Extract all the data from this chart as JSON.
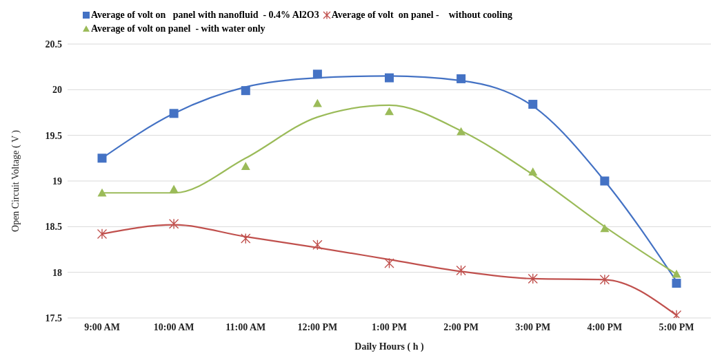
{
  "chart_data": {
    "type": "scatter",
    "xlabel": "Daily Hours ( h )",
    "ylabel": "Open Circuit Voltage ( V )",
    "categories": [
      "9:00 AM",
      "10:00 AM",
      "11:00 AM",
      "12:00 PM",
      "1:00 PM",
      "2:00 PM",
      "3:00 PM",
      "4:00 PM",
      "5:00 PM"
    ],
    "ylim": [
      17.5,
      20.5
    ],
    "yticks": [
      17.5,
      18,
      18.5,
      19,
      19.5,
      20,
      20.5
    ],
    "grid": "y",
    "legend": "top",
    "series": [
      {
        "name": "Average of volt on   panel with nanofluid  - 0.4% Al2O3",
        "color": "#4472c4",
        "marker": "square",
        "values": [
          19.25,
          19.74,
          19.99,
          20.17,
          20.13,
          20.12,
          19.84,
          19.0,
          17.88
        ]
      },
      {
        "name": "Average of volt  on panel -    without cooling",
        "color": "#c0504d",
        "marker": "cross",
        "values": [
          18.42,
          18.53,
          18.37,
          18.3,
          18.1,
          18.02,
          17.93,
          17.92,
          17.53
        ]
      },
      {
        "name": "Average of volt on panel  - with water only",
        "color": "#9bbb59",
        "marker": "triangle",
        "values": [
          18.87,
          18.91,
          19.16,
          19.85,
          19.76,
          19.54,
          19.1,
          18.48,
          17.98
        ]
      },
      {
        "color": "#4472c4",
        "type": "line",
        "values": [
          19.25,
          19.74,
          20.03,
          20.13,
          20.15,
          20.1,
          19.82,
          19.0,
          17.9
        ]
      },
      {
        "color": "#c0504d",
        "type": "line",
        "values": [
          18.42,
          18.52,
          18.39,
          18.27,
          18.14,
          18.01,
          17.93,
          17.92,
          17.53
        ]
      },
      {
        "color": "#9bbb59",
        "type": "line",
        "values": [
          18.87,
          18.87,
          19.25,
          19.7,
          19.83,
          19.55,
          19.07,
          18.5,
          17.98
        ]
      }
    ]
  }
}
